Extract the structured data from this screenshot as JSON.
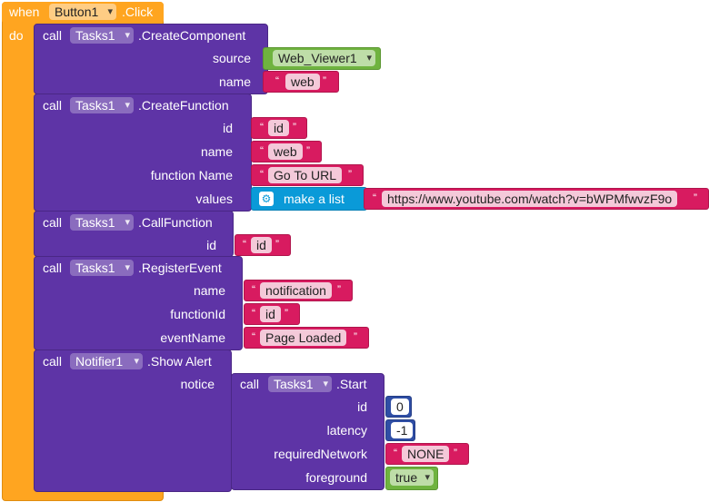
{
  "event": {
    "when_label": "when",
    "component": "Button1",
    "event_name": ".Click",
    "do_label": "do"
  },
  "blocks": {
    "create_component": {
      "call_label": "call",
      "component": "Tasks1",
      "method": ".CreateComponent",
      "source_label": "source",
      "source_value": "Web_Viewer1",
      "name_label": "name",
      "name_value": "web"
    },
    "create_function": {
      "call_label": "call",
      "component": "Tasks1",
      "method": ".CreateFunction",
      "id_label": "id",
      "id_value": "id",
      "name_label": "name",
      "name_value": "web",
      "function_name_label": "function Name",
      "function_name_value": "Go To URL",
      "values_label": "values",
      "make_list_label": "make a list",
      "list_item": "https://www.youtube.com/watch?v=bWPMfwvzF9o"
    },
    "call_function": {
      "call_label": "call",
      "component": "Tasks1",
      "method": ".CallFunction",
      "id_label": "id",
      "id_value": "id"
    },
    "register_event": {
      "call_label": "call",
      "component": "Tasks1",
      "method": ".RegisterEvent",
      "name_label": "name",
      "name_value": "notification",
      "function_id_label": "functionId",
      "function_id_value": "id",
      "event_name_label": "eventName",
      "event_name_value": "Page Loaded"
    },
    "show_alert": {
      "call_label": "call",
      "component": "Notifier1",
      "method": ".Show Alert",
      "notice_label": "notice"
    },
    "start": {
      "call_label": "call",
      "component": "Tasks1",
      "method": ".Start",
      "id_label": "id",
      "id_value": "0",
      "latency_label": "latency",
      "latency_value": "-1",
      "network_label": "requiredNetwork",
      "network_value": "NONE",
      "foreground_label": "foreground",
      "foreground_value": "true"
    }
  },
  "quote_open": "“",
  "quote_close": "”",
  "colors": {
    "event": "#ffa520",
    "procedure": "#5e34a6",
    "text": "#d81b60",
    "component": "#6fb33f",
    "list": "#0a9ad8",
    "math": "#2f4ea5"
  }
}
